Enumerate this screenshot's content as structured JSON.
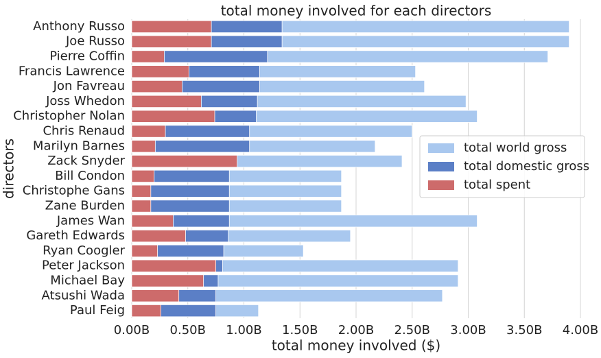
{
  "chart_data": {
    "type": "bar",
    "orientation": "horizontal",
    "overlap": true,
    "title": "total money involved for each directors",
    "xlabel": "total money involved ($)",
    "ylabel": "directors",
    "categories": [
      "Anthony Russo",
      "Joe Russo",
      "Pierre Coffin",
      "Francis Lawrence",
      "Jon Favreau",
      "Joss Whedon",
      "Christopher Nolan",
      "Chris Renaud",
      "Marilyn Barnes",
      "Zack Snyder",
      "Bill Condon",
      "Christophe Gans",
      "Zane Burden",
      "James Wan",
      "Gareth Edwards",
      "Ryan Coogler",
      "Peter Jackson",
      "Michael Bay",
      "Atsushi Wada",
      "Paul Feig"
    ],
    "series": [
      {
        "name": "total world gross",
        "color": "#a9c8ef",
        "values": [
          3900000000,
          3900000000,
          3710000000,
          2530000000,
          2610000000,
          2980000000,
          3080000000,
          2500000000,
          2170000000,
          2410000000,
          1870000000,
          1870000000,
          1870000000,
          3080000000,
          1950000000,
          1530000000,
          2910000000,
          2910000000,
          2770000000,
          1130000000
        ]
      },
      {
        "name": "total domestic gross",
        "color": "#5b7fc6",
        "values": [
          1340000000,
          1340000000,
          1210000000,
          1140000000,
          1140000000,
          1120000000,
          1110000000,
          1050000000,
          1050000000,
          900000000,
          870000000,
          870000000,
          870000000,
          870000000,
          860000000,
          820000000,
          810000000,
          770000000,
          750000000,
          750000000
        ]
      },
      {
        "name": "total spent",
        "color": "#cd6b6b",
        "values": [
          710000000,
          710000000,
          290000000,
          510000000,
          450000000,
          620000000,
          740000000,
          300000000,
          210000000,
          940000000,
          200000000,
          170000000,
          170000000,
          370000000,
          480000000,
          230000000,
          750000000,
          640000000,
          420000000,
          260000000
        ]
      }
    ],
    "xlim": [
      0,
      4000000000
    ],
    "xticks": [
      {
        "value": 0,
        "label": "0.00B"
      },
      {
        "value": 500000000,
        "label": "0.50B"
      },
      {
        "value": 1000000000,
        "label": "1.00B"
      },
      {
        "value": 1500000000,
        "label": "1.50B"
      },
      {
        "value": 2000000000,
        "label": "2.00B"
      },
      {
        "value": 2500000000,
        "label": "2.50B"
      },
      {
        "value": 3000000000,
        "label": "3.00B"
      },
      {
        "value": 3500000000,
        "label": "3.50B"
      },
      {
        "value": 4000000000,
        "label": "4.00B"
      }
    ],
    "grid": true,
    "legend": "center right"
  }
}
